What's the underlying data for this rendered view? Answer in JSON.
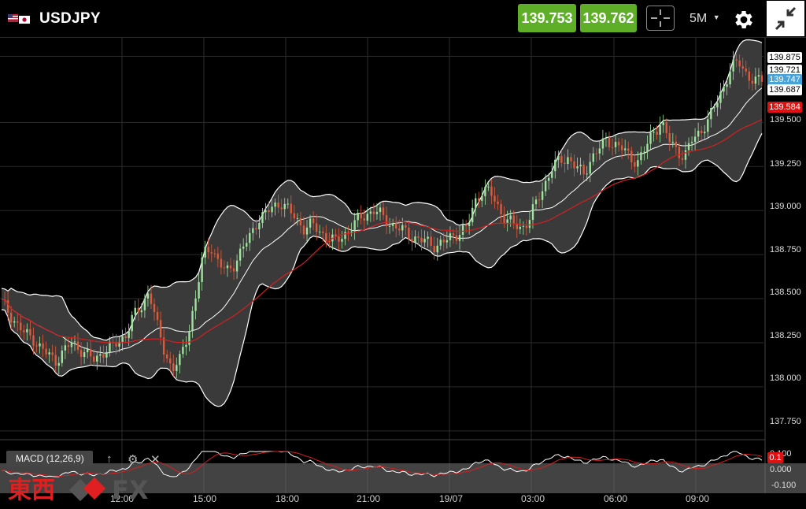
{
  "header": {
    "symbol": "USDJPY",
    "bid": "139.753",
    "ask": "139.762",
    "timeframe": "5M",
    "icons": [
      "us-jp-flag-icon",
      "crosshair-icon",
      "chevron-down-icon",
      "gear-icon",
      "collapse-icon"
    ],
    "colors": {
      "price_button": "#5fae28",
      "background": "#000000"
    }
  },
  "chart_data": {
    "type": "candlestick",
    "instrument": "USDJPY",
    "interval": "5M",
    "y_ticks": [
      "139.875",
      "139.500",
      "139.250",
      "139.000",
      "138.750",
      "138.500",
      "138.250",
      "138.000",
      "137.750"
    ],
    "x_ticks": [
      "12:00",
      "15:00",
      "18:00",
      "21:00",
      "19/07",
      "03:00",
      "06:00",
      "09:00"
    ],
    "ylim": [
      137.7,
      139.98
    ],
    "price_tags": [
      {
        "value": "139.875",
        "style": "white"
      },
      {
        "value": "139.721",
        "style": "white"
      },
      {
        "value": "139.747",
        "style": "blue"
      },
      {
        "value": "139.687",
        "style": "white"
      },
      {
        "value": "139.584",
        "style": "red"
      }
    ],
    "colors": {
      "up": "#9fe39f",
      "down": "#e05a3a",
      "ma": "#d42020",
      "band": "#ffffff",
      "band_fill": "#3a3a3a"
    },
    "close_path": [
      138.48,
      138.42,
      138.35,
      138.3,
      138.28,
      138.22,
      138.18,
      138.15,
      138.2,
      138.25,
      138.22,
      138.18,
      138.15,
      138.2,
      138.22,
      138.25,
      138.3,
      138.4,
      138.45,
      138.55,
      138.35,
      138.2,
      138.1,
      138.15,
      138.3,
      138.5,
      138.75,
      138.8,
      138.7,
      138.65,
      138.7,
      138.78,
      138.85,
      138.95,
      138.98,
      139.02,
      139.05,
      139.0,
      138.95,
      138.9,
      138.92,
      138.88,
      138.85,
      138.82,
      138.86,
      138.9,
      138.95,
      138.98,
      139.0,
      138.97,
      138.93,
      138.9,
      138.88,
      138.85,
      138.83,
      138.82,
      138.8,
      138.82,
      138.85,
      138.88,
      138.9,
      139.05,
      139.12,
      139.1,
      139.02,
      138.95,
      138.92,
      138.9,
      138.95,
      139.05,
      139.15,
      139.25,
      139.28,
      139.3,
      139.25,
      139.2,
      139.3,
      139.35,
      139.4,
      139.38,
      139.35,
      139.3,
      139.28,
      139.35,
      139.45,
      139.5,
      139.4,
      139.35,
      139.3,
      139.4,
      139.45,
      139.5,
      139.6,
      139.7,
      139.8,
      139.85,
      139.78,
      139.72,
      139.75
    ]
  },
  "macd": {
    "label": "MACD (12,26,9)",
    "y_ticks": [
      "0.100",
      "0.000",
      "-0.100"
    ],
    "value_tag": "0.1",
    "icons": [
      "arrow-up-icon",
      "gear-icon",
      "close-icon"
    ]
  },
  "watermark": {
    "kanji": "東西",
    "fx": "FX"
  }
}
